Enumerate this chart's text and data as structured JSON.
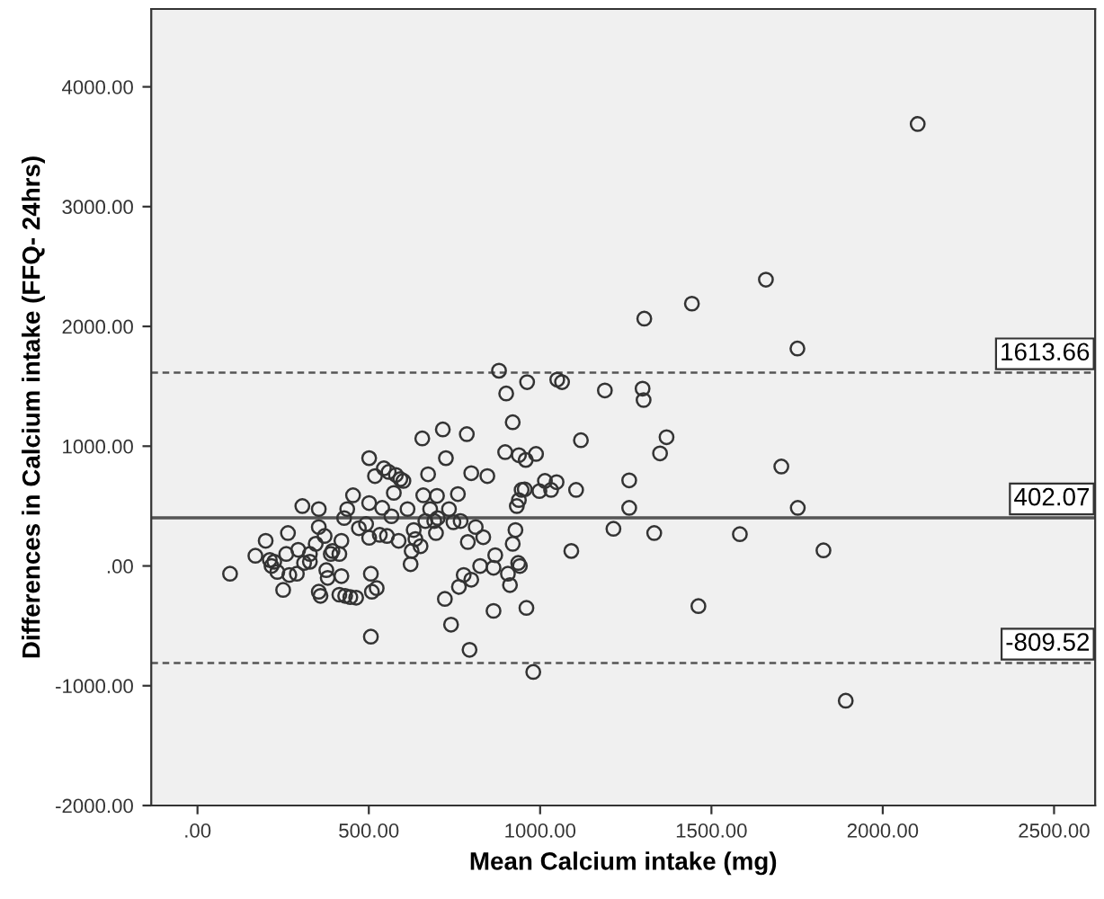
{
  "chart_data": {
    "type": "scatter",
    "xlabel": "Mean Calcium intake (mg)",
    "ylabel": "Differences in Calcium intake (FFQ- 24hrs)",
    "x": [
      95,
      169,
      199,
      211,
      216,
      224,
      233,
      250,
      259,
      264,
      268,
      290,
      294,
      311,
      306,
      328,
      328,
      345,
      354,
      354,
      354,
      359,
      371,
      376,
      380,
      389,
      394,
      414,
      420,
      420,
      414,
      428,
      431,
      437,
      446,
      454,
      463,
      471,
      492,
      501,
      501,
      501,
      506,
      509,
      506,
      518,
      523,
      532,
      539,
      544,
      553,
      558,
      566,
      573,
      579,
      587,
      592,
      601,
      613,
      622,
      625,
      631,
      636,
      651,
      656,
      659,
      665,
      673,
      679,
      691,
      696,
      699,
      701,
      716,
      725,
      722,
      734,
      740,
      747,
      760,
      763,
      768,
      777,
      786,
      789,
      794,
      799,
      799,
      812,
      825,
      834,
      846,
      864,
      869,
      864,
      898,
      906,
      912,
      920,
      920,
      928,
      932,
      936,
      938,
      938,
      941,
      946,
      955,
      958,
      960,
      980,
      988,
      998,
      1014,
      1032,
      1048,
      1091,
      1105,
      1119,
      1214,
      1260,
      1260,
      1333,
      1350,
      1369,
      1462,
      1583,
      1704,
      1752,
      1827,
      1892,
      2102,
      1659,
      1443,
      1304,
      1751,
      880,
      901,
      962,
      1050,
      1064,
      1189,
      1299,
      1302
    ],
    "series": [
      {
        "color": "#333333",
        "values": [
          -65,
          85,
          210,
          50,
          0,
          35,
          -50,
          -200,
          100,
          275,
          -75,
          -65,
          135,
          25,
          500,
          35,
          100,
          185,
          475,
          325,
          -215,
          -250,
          250,
          -35,
          -100,
          100,
          125,
          100,
          210,
          -85,
          -240,
          400,
          -250,
          475,
          -260,
          590,
          -265,
          315,
          350,
          900,
          525,
          235,
          -65,
          -215,
          -590,
          750,
          -185,
          260,
          485,
          815,
          250,
          785,
          415,
          610,
          760,
          210,
          725,
          710,
          475,
          15,
          125,
          300,
          225,
          165,
          1065,
          590,
          375,
          765,
          475,
          375,
          275,
          585,
          400,
          1140,
          900,
          -275,
          475,
          -490,
          365,
          600,
          -175,
          375,
          -75,
          1100,
          200,
          -700,
          -115,
          775,
          325,
          0,
          240,
          750,
          -375,
          90,
          -15,
          950,
          -65,
          -160,
          1200,
          185,
          300,
          500,
          25,
          550,
          925,
          0,
          635,
          640,
          885,
          -350,
          -885,
          935,
          625,
          710,
          635,
          700,
          125,
          635,
          1050,
          310,
          715,
          485,
          275,
          940,
          1075,
          -335,
          265,
          830,
          485,
          130,
          -1125,
          3690,
          2390,
          2190,
          2065,
          1815,
          1630,
          1440,
          1535,
          1555,
          1535,
          1465,
          1480,
          1385
        ]
      }
    ],
    "marker": "circle",
    "grid": false,
    "legend": false,
    "xlim": [
      -135,
      2620
    ],
    "ylim": [
      -2000,
      4650
    ],
    "xticks": [
      {
        "value": 0,
        "label": ".00"
      },
      {
        "value": 500,
        "label": "500.00"
      },
      {
        "value": 1000,
        "label": "1000.00"
      },
      {
        "value": 1500,
        "label": "1500.00"
      },
      {
        "value": 2000,
        "label": "2000.00"
      },
      {
        "value": 2500,
        "label": "2500.00"
      }
    ],
    "yticks": [
      {
        "value": -2000,
        "label": "-2000.00"
      },
      {
        "value": -1000,
        "label": "-1000.00"
      },
      {
        "value": 0,
        "label": ".00"
      },
      {
        "value": 1000,
        "label": "1000.00"
      },
      {
        "value": 2000,
        "label": "2000.00"
      },
      {
        "value": 3000,
        "label": "3000.00"
      },
      {
        "value": 4000,
        "label": "4000.00"
      }
    ],
    "ref_lines": [
      {
        "axis": "y",
        "value": 1613.66,
        "label": "1613.66",
        "line_style": "dashed",
        "color": "#555555"
      },
      {
        "axis": "y",
        "value": 402.07,
        "label": "402.07",
        "line_style": "solid",
        "color": "#555555"
      },
      {
        "axis": "y",
        "value": -809.52,
        "label": "-809.52",
        "line_style": "dashed",
        "color": "#555555"
      }
    ]
  }
}
